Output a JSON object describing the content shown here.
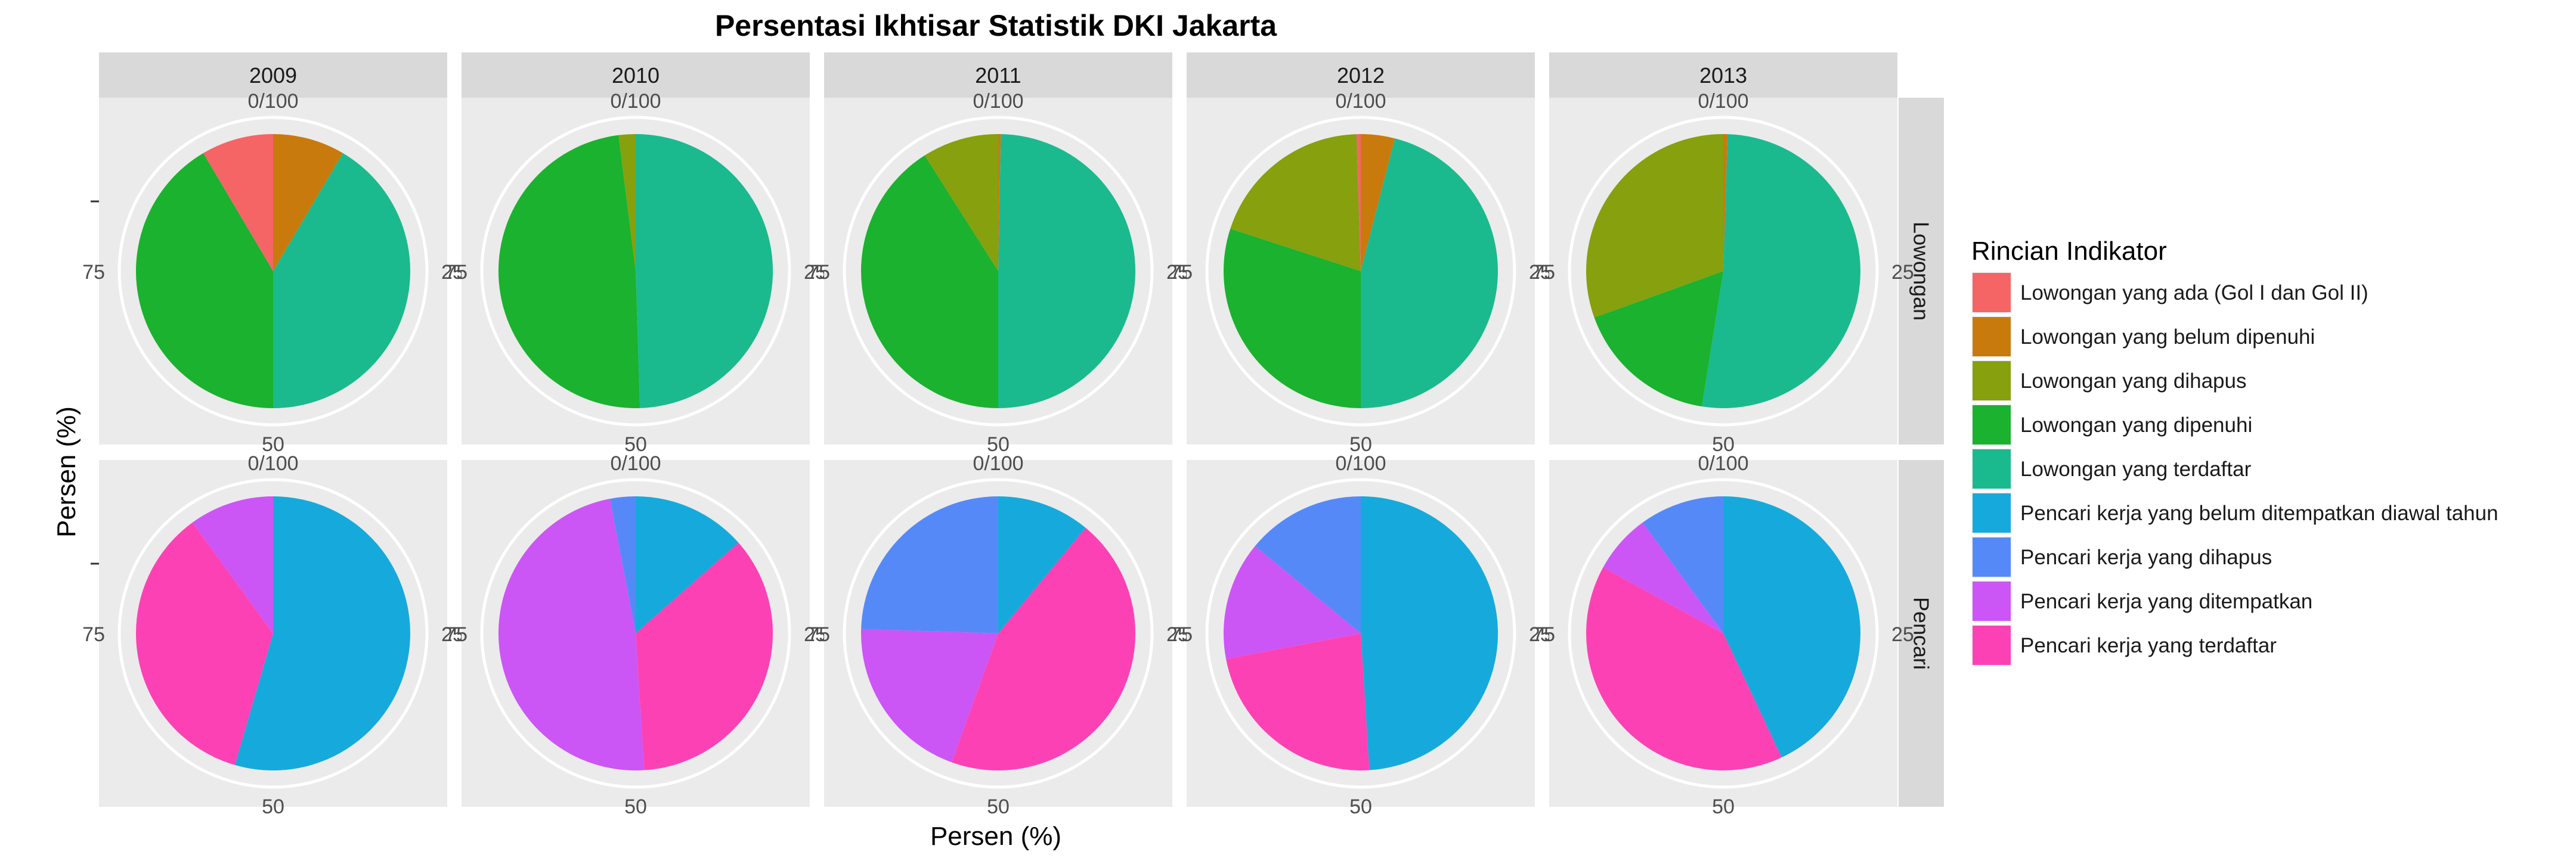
{
  "chart_data": {
    "type": "pie",
    "title": "Persentasi Ikhtisar Statistik DKI Jakarta",
    "xlabel": "Persen (%)",
    "ylabel": "Persen (%)",
    "facet_columns": [
      "2009",
      "2010",
      "2011",
      "2012",
      "2013"
    ],
    "facet_rows": [
      "Lowongan",
      "Pencari"
    ],
    "angle_ticks": [
      "0/100",
      "25",
      "50",
      "75"
    ],
    "legend": {
      "title": "Rincian Indikator",
      "position": "right",
      "items": [
        {
          "name": "Lowongan yang ada (Gol I dan Gol II)",
          "color": "#F8766D"
        },
        {
          "name": "Lowongan yang belum dipenuhi",
          "color": "#CD9600"
        },
        {
          "name": "Lowongan yang dihapus",
          "color": "#7CAE00"
        },
        {
          "name": "Lowongan yang dipenuhi",
          "color": "#0CB702"
        },
        {
          "name": "Lowongan yang terdaftar",
          "color": "#00BE67"
        },
        {
          "name": "Pencari kerja yang belum ditempatkan diawal tahun",
          "color": "#00A9FF"
        },
        {
          "name": "Pencari kerja yang dihapus",
          "color": "#619CFF"
        },
        {
          "name": "Pencari kerja yang ditempatkan",
          "color": "#D575FE"
        },
        {
          "name": "Pencari kerja yang terdaftar",
          "color": "#FF61C3"
        }
      ]
    },
    "colors": {
      "Lowongan yang ada (Gol I dan Gol II)": "#F56565",
      "Lowongan yang belum dipenuhi": "#C97A0C",
      "Lowongan yang dihapus": "#86A00E",
      "Lowongan yang dipenuhi": "#1AB22E",
      "Lowongan yang terdaftar": "#1ABA8E",
      "Pencari kerja yang belum ditempatkan diawal tahun": "#16AADC",
      "Pencari kerja yang dihapus": "#5689F8",
      "Pencari kerja yang ditempatkan": "#CC55F5",
      "Pencari kerja yang terdaftar": "#FC41B5"
    },
    "panels": [
      {
        "year": "2009",
        "row": "Lowongan",
        "slices": [
          {
            "name": "Lowongan yang belum dipenuhi",
            "value": 8.5
          },
          {
            "name": "Lowongan yang terdaftar",
            "value": 41.5
          },
          {
            "name": "Lowongan yang dipenuhi",
            "value": 41.5
          },
          {
            "name": "Lowongan yang ada (Gol I dan Gol II)",
            "value": 8.5
          }
        ]
      },
      {
        "year": "2010",
        "row": "Lowongan",
        "slices": [
          {
            "name": "Lowongan yang terdaftar",
            "value": 49.5
          },
          {
            "name": "Lowongan yang dipenuhi",
            "value": 48.5
          },
          {
            "name": "Lowongan yang dihapus",
            "value": 2.0
          }
        ]
      },
      {
        "year": "2011",
        "row": "Lowongan",
        "slices": [
          {
            "name": "Lowongan yang belum dipenuhi",
            "value": 0.3
          },
          {
            "name": "Lowongan yang terdaftar",
            "value": 49.7
          },
          {
            "name": "Lowongan yang dipenuhi",
            "value": 41.0
          },
          {
            "name": "Lowongan yang dihapus",
            "value": 9.0
          }
        ]
      },
      {
        "year": "2012",
        "row": "Lowongan",
        "slices": [
          {
            "name": "Lowongan yang belum dipenuhi",
            "value": 4.0
          },
          {
            "name": "Lowongan yang terdaftar",
            "value": 46.0
          },
          {
            "name": "Lowongan yang dipenuhi",
            "value": 30.0
          },
          {
            "name": "Lowongan yang dihapus",
            "value": 19.5
          },
          {
            "name": "Lowongan yang ada (Gol I dan Gol II)",
            "value": 0.5
          }
        ]
      },
      {
        "year": "2013",
        "row": "Lowongan",
        "slices": [
          {
            "name": "Lowongan yang belum dipenuhi",
            "value": 0.5
          },
          {
            "name": "Lowongan yang terdaftar",
            "value": 52.0
          },
          {
            "name": "Lowongan yang dipenuhi",
            "value": 17.0
          },
          {
            "name": "Lowongan yang dihapus",
            "value": 30.5
          }
        ]
      },
      {
        "year": "2009",
        "row": "Pencari",
        "slices": [
          {
            "name": "Pencari kerja yang belum ditempatkan diawal tahun",
            "value": 54.5
          },
          {
            "name": "Pencari kerja yang terdaftar",
            "value": 35.5
          },
          {
            "name": "Pencari kerja yang ditempatkan",
            "value": 10.0
          }
        ]
      },
      {
        "year": "2010",
        "row": "Pencari",
        "slices": [
          {
            "name": "Pencari kerja yang belum ditempatkan diawal tahun",
            "value": 13.5
          },
          {
            "name": "Pencari kerja yang terdaftar",
            "value": 35.5
          },
          {
            "name": "Pencari kerja yang ditempatkan",
            "value": 48.0
          },
          {
            "name": "Pencari kerja yang dihapus",
            "value": 3.0
          }
        ]
      },
      {
        "year": "2011",
        "row": "Pencari",
        "slices": [
          {
            "name": "Pencari kerja yang belum ditempatkan diawal tahun",
            "value": 11.0
          },
          {
            "name": "Pencari kerja yang terdaftar",
            "value": 44.5
          },
          {
            "name": "Pencari kerja yang ditempatkan",
            "value": 20.0
          },
          {
            "name": "Pencari kerja yang dihapus",
            "value": 24.5
          }
        ]
      },
      {
        "year": "2012",
        "row": "Pencari",
        "slices": [
          {
            "name": "Pencari kerja yang belum ditempatkan diawal tahun",
            "value": 49.0
          },
          {
            "name": "Pencari kerja yang terdaftar",
            "value": 23.0
          },
          {
            "name": "Pencari kerja yang ditempatkan",
            "value": 14.0
          },
          {
            "name": "Pencari kerja yang dihapus",
            "value": 14.0
          }
        ]
      },
      {
        "year": "2013",
        "row": "Pencari",
        "slices": [
          {
            "name": "Pencari kerja yang belum ditempatkan diawal tahun",
            "value": 43.0
          },
          {
            "name": "Pencari kerja yang terdaftar",
            "value": 40.0
          },
          {
            "name": "Pencari kerja yang ditempatkan",
            "value": 7.0
          },
          {
            "name": "Pencari kerja yang dihapus",
            "value": 10.0
          }
        ]
      }
    ]
  }
}
